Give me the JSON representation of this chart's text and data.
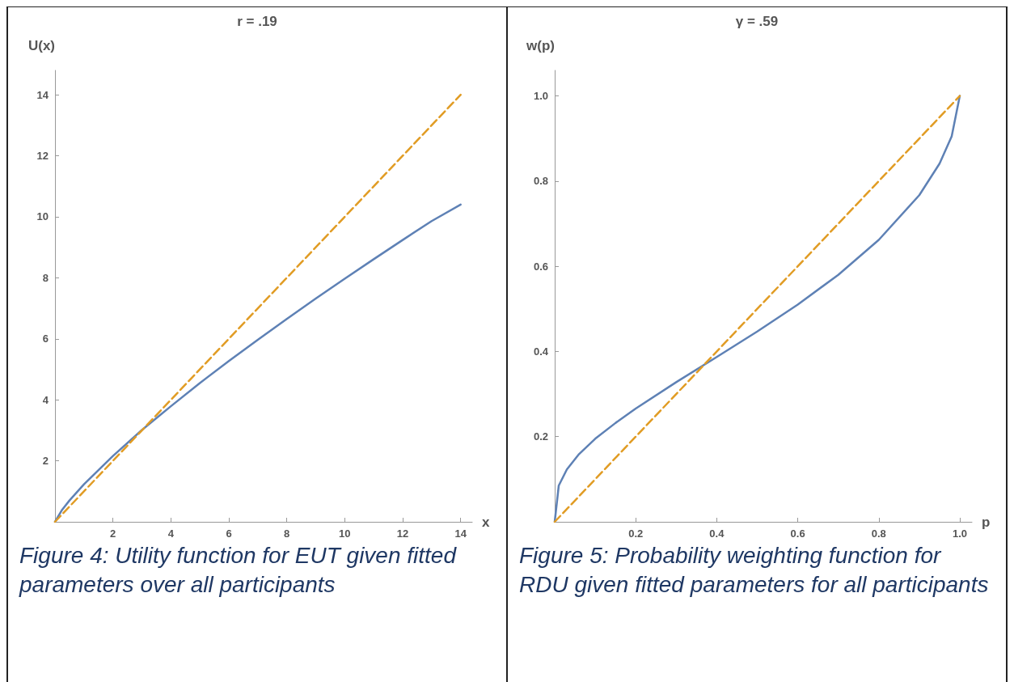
{
  "chart_data": [
    {
      "type": "line",
      "title": "r = .19",
      "xlabel": "x",
      "ylabel": "U(x)",
      "xlim": [
        0,
        14.4
      ],
      "ylim": [
        0,
        14.8
      ],
      "xticks": [
        2,
        4,
        6,
        8,
        10,
        12,
        14
      ],
      "yticks": [
        2,
        4,
        6,
        8,
        10,
        12,
        14
      ],
      "grid": false,
      "marker": "none",
      "annotations": [
        "Figure 4: Utility function for EUT given fitted parameters over all participants"
      ],
      "series": [
        {
          "color": "#5e81b5",
          "line_style": "solid",
          "x": [
            0,
            0.25,
            0.5,
            1,
            2,
            3,
            4,
            5,
            6,
            7,
            8,
            9,
            10,
            11,
            12,
            13,
            14
          ],
          "values": [
            0,
            0.4,
            0.7,
            1.23,
            2.16,
            3.01,
            3.79,
            4.55,
            5.27,
            5.97,
            6.65,
            7.32,
            7.97,
            8.61,
            9.24,
            9.86,
            10.4
          ]
        },
        {
          "color": "#e19c24",
          "line_style": "dashed",
          "x": [
            0,
            14
          ],
          "values": [
            0,
            14
          ]
        }
      ]
    },
    {
      "type": "line",
      "title": "γ = .59",
      "xlabel": "p",
      "ylabel": "w(p)",
      "xlim": [
        0,
        1.03
      ],
      "ylim": [
        0,
        1.06
      ],
      "xticks": [
        0.2,
        0.4,
        0.6,
        0.8,
        {
          "value": 1,
          "label": "1.0"
        }
      ],
      "yticks": [
        0.2,
        0.4,
        0.6,
        0.8,
        {
          "value": 1,
          "label": "1.0"
        }
      ],
      "grid": false,
      "marker": "none",
      "annotations": [
        "Figure 5: Probability weighting function for RDU given fitted parameters for all participants"
      ],
      "series": [
        {
          "color": "#5e81b5",
          "line_style": "solid",
          "x": [
            0,
            0.01,
            0.03,
            0.06,
            0.1,
            0.15,
            0.2,
            0.3,
            0.4,
            0.5,
            0.6,
            0.7,
            0.8,
            0.9,
            0.95,
            0.98,
            1
          ],
          "values": [
            0,
            0.085,
            0.123,
            0.159,
            0.195,
            0.232,
            0.266,
            0.328,
            0.387,
            0.447,
            0.51,
            0.58,
            0.662,
            0.767,
            0.841,
            0.905,
            1
          ]
        },
        {
          "color": "#e19c24",
          "line_style": "dashed",
          "x": [
            0,
            1
          ],
          "values": [
            0,
            1
          ]
        }
      ]
    }
  ]
}
